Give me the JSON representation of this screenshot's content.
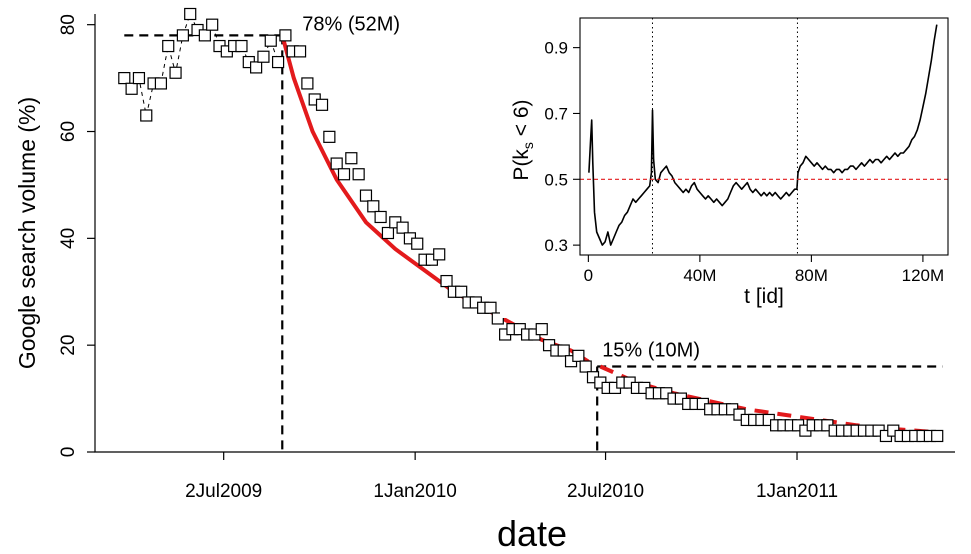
{
  "chart_data": [
    {
      "type": "scatter",
      "xlabel": "date",
      "ylabel": "Google search volume (%)",
      "x_ticks": [
        "2Jul2009",
        "1Jan2010",
        "2Jul2010",
        "1Jan2011"
      ],
      "y_ticks": [
        0,
        20,
        40,
        60,
        80
      ],
      "ylim": [
        0,
        82
      ],
      "xlim": [
        "2009-03-01",
        "2011-06-01"
      ],
      "grid": false,
      "colors": {
        "points": "#000000",
        "fit": "#e31a1c",
        "reference": "#000000"
      },
      "points": [
        [
          "2009-03-29",
          70
        ],
        [
          "2009-04-05",
          68
        ],
        [
          "2009-04-12",
          70
        ],
        [
          "2009-04-19",
          63
        ],
        [
          "2009-04-26",
          69
        ],
        [
          "2009-05-03",
          69
        ],
        [
          "2009-05-10",
          76
        ],
        [
          "2009-05-17",
          71
        ],
        [
          "2009-05-24",
          78
        ],
        [
          "2009-05-31",
          82
        ],
        [
          "2009-06-07",
          79
        ],
        [
          "2009-06-14",
          78
        ],
        [
          "2009-06-21",
          80
        ],
        [
          "2009-06-28",
          76
        ],
        [
          "2009-07-05",
          75
        ],
        [
          "2009-07-12",
          76
        ],
        [
          "2009-07-19",
          76
        ],
        [
          "2009-07-26",
          73
        ],
        [
          "2009-08-02",
          72
        ],
        [
          "2009-08-09",
          74
        ],
        [
          "2009-08-16",
          77
        ],
        [
          "2009-08-23",
          73
        ],
        [
          "2009-08-30",
          78
        ],
        [
          "2009-09-06",
          75
        ],
        [
          "2009-09-13",
          75
        ],
        [
          "2009-09-20",
          69
        ],
        [
          "2009-09-27",
          66
        ],
        [
          "2009-10-04",
          65
        ],
        [
          "2009-10-11",
          59
        ],
        [
          "2009-10-18",
          54
        ],
        [
          "2009-10-25",
          52
        ],
        [
          "2009-11-01",
          55
        ],
        [
          "2009-11-08",
          52
        ],
        [
          "2009-11-15",
          48
        ],
        [
          "2009-11-22",
          46
        ],
        [
          "2009-11-29",
          44
        ],
        [
          "2009-12-06",
          41
        ],
        [
          "2009-12-13",
          43
        ],
        [
          "2009-12-20",
          42
        ],
        [
          "2009-12-27",
          40
        ],
        [
          "2010-01-03",
          39
        ],
        [
          "2010-01-10",
          36
        ],
        [
          "2010-01-17",
          36
        ],
        [
          "2010-01-24",
          37
        ],
        [
          "2010-01-31",
          32
        ],
        [
          "2010-02-07",
          30
        ],
        [
          "2010-02-14",
          30
        ],
        [
          "2010-02-21",
          28
        ],
        [
          "2010-02-28",
          28
        ],
        [
          "2010-03-07",
          27
        ],
        [
          "2010-03-14",
          27
        ],
        [
          "2010-03-21",
          25
        ],
        [
          "2010-03-28",
          22
        ],
        [
          "2010-04-04",
          23
        ],
        [
          "2010-04-11",
          23
        ],
        [
          "2010-04-18",
          22
        ],
        [
          "2010-04-25",
          22
        ],
        [
          "2010-05-02",
          23
        ],
        [
          "2010-05-09",
          20
        ],
        [
          "2010-05-16",
          19
        ],
        [
          "2010-05-23",
          19
        ],
        [
          "2010-05-30",
          17
        ],
        [
          "2010-06-06",
          18
        ],
        [
          "2010-06-13",
          16
        ],
        [
          "2010-06-20",
          14
        ],
        [
          "2010-06-27",
          13
        ],
        [
          "2010-07-04",
          12
        ],
        [
          "2010-07-11",
          12
        ],
        [
          "2010-07-18",
          13
        ],
        [
          "2010-07-25",
          13
        ],
        [
          "2010-08-01",
          12
        ],
        [
          "2010-08-08",
          12
        ],
        [
          "2010-08-15",
          11
        ],
        [
          "2010-08-22",
          11
        ],
        [
          "2010-08-29",
          11
        ],
        [
          "2010-09-05",
          10
        ],
        [
          "2010-09-12",
          10
        ],
        [
          "2010-09-19",
          9
        ],
        [
          "2010-09-26",
          9
        ],
        [
          "2010-10-03",
          9
        ],
        [
          "2010-10-10",
          8
        ],
        [
          "2010-10-17",
          8
        ],
        [
          "2010-10-24",
          8
        ],
        [
          "2010-10-31",
          8
        ],
        [
          "2010-11-07",
          7
        ],
        [
          "2010-11-14",
          6
        ],
        [
          "2010-11-21",
          6
        ],
        [
          "2010-11-28",
          6
        ],
        [
          "2010-12-05",
          6
        ],
        [
          "2010-12-12",
          5
        ],
        [
          "2010-12-19",
          5
        ],
        [
          "2010-12-26",
          5
        ],
        [
          "2011-01-02",
          5
        ],
        [
          "2011-01-09",
          4
        ],
        [
          "2011-01-16",
          5
        ],
        [
          "2011-01-23",
          5
        ],
        [
          "2011-01-30",
          5
        ],
        [
          "2011-02-06",
          4
        ],
        [
          "2011-02-13",
          4
        ],
        [
          "2011-02-20",
          4
        ],
        [
          "2011-02-27",
          4
        ],
        [
          "2011-03-06",
          4
        ],
        [
          "2011-03-13",
          4
        ],
        [
          "2011-03-20",
          4
        ],
        [
          "2011-03-27",
          3
        ],
        [
          "2011-04-03",
          4
        ],
        [
          "2011-04-10",
          3
        ],
        [
          "2011-04-17",
          3
        ],
        [
          "2011-04-24",
          3
        ],
        [
          "2011-05-01",
          3
        ],
        [
          "2011-05-08",
          3
        ],
        [
          "2011-05-15",
          3
        ]
      ],
      "fit_solid": [
        [
          "2009-08-27",
          78
        ],
        [
          "2009-09-07",
          70
        ],
        [
          "2009-09-25",
          60
        ],
        [
          "2009-10-18",
          51
        ],
        [
          "2009-11-15",
          43
        ],
        [
          "2009-12-13",
          38
        ],
        [
          "2010-01-10",
          34
        ],
        [
          "2010-02-07",
          30
        ],
        [
          "2010-03-07",
          27
        ],
        [
          "2010-04-04",
          24
        ],
        [
          "2010-05-02",
          21
        ],
        [
          "2010-05-30",
          19
        ],
        [
          "2010-06-15",
          17
        ]
      ],
      "fit_dashed": [
        [
          "2010-06-27",
          16
        ],
        [
          "2010-08-01",
          13
        ],
        [
          "2010-09-05",
          11
        ],
        [
          "2010-10-10",
          9.5
        ],
        [
          "2010-11-14",
          8
        ],
        [
          "2010-12-19",
          7
        ],
        [
          "2011-01-23",
          6
        ],
        [
          "2011-02-27",
          5
        ],
        [
          "2011-04-03",
          4.3
        ],
        [
          "2011-05-08",
          3.8
        ]
      ],
      "reference_lines": [
        {
          "label": "78% (52M)",
          "date": "2009-08-27",
          "level": 78,
          "h_from": "2009-03-29",
          "h_to": "2009-08-27"
        },
        {
          "label": "15% (10M)",
          "date": "2010-06-24",
          "level": 16,
          "h_from": "2010-06-24",
          "h_to": "2011-05-20"
        }
      ]
    },
    {
      "type": "line",
      "xlabel": "t [id]",
      "ylabel": "P(k_s < 6)",
      "ylabel_main": "P(k",
      "ylabel_sub": "s",
      "ylabel_tail": " < 6)",
      "x_ticks": [
        "0",
        "40M",
        "80M",
        "120M"
      ],
      "x_tick_values": [
        0,
        40,
        80,
        120
      ],
      "y_ticks": [
        "0.3",
        "0.5",
        "0.7",
        "0.9"
      ],
      "y_tick_values": [
        0.3,
        0.5,
        0.7,
        0.9
      ],
      "xlim": [
        -3,
        129
      ],
      "ylim": [
        0.27,
        0.99
      ],
      "x_unit": "M",
      "colors": {
        "line": "#000000",
        "hline": "#e31a1c",
        "vlines": "#000000"
      },
      "hline": 0.5,
      "vlines": [
        23,
        75
      ],
      "series": [
        {
          "values": [
            [
              0.2,
              0.52
            ],
            [
              0.8,
              0.62
            ],
            [
              1.2,
              0.68
            ],
            [
              1.6,
              0.55
            ],
            [
              2.2,
              0.4
            ],
            [
              3,
              0.34
            ],
            [
              4,
              0.32
            ],
            [
              5,
              0.3
            ],
            [
              6,
              0.31
            ],
            [
              7,
              0.34
            ],
            [
              8,
              0.3
            ],
            [
              9,
              0.32
            ],
            [
              10,
              0.34
            ],
            [
              11,
              0.36
            ],
            [
              12,
              0.37
            ],
            [
              13,
              0.39
            ],
            [
              14,
              0.4
            ],
            [
              15,
              0.42
            ],
            [
              16,
              0.44
            ],
            [
              17,
              0.43
            ],
            [
              18,
              0.44
            ],
            [
              19,
              0.45
            ],
            [
              20,
              0.46
            ],
            [
              21,
              0.47
            ],
            [
              22,
              0.48
            ],
            [
              22.6,
              0.52
            ],
            [
              23,
              0.71
            ],
            [
              23.4,
              0.56
            ],
            [
              24,
              0.5
            ],
            [
              25,
              0.49
            ],
            [
              26,
              0.52
            ],
            [
              27,
              0.53
            ],
            [
              28,
              0.54
            ],
            [
              29,
              0.52
            ],
            [
              30,
              0.51
            ],
            [
              31,
              0.49
            ],
            [
              32,
              0.48
            ],
            [
              33,
              0.47
            ],
            [
              34,
              0.46
            ],
            [
              35,
              0.47
            ],
            [
              36,
              0.46
            ],
            [
              37,
              0.48
            ],
            [
              38,
              0.49
            ],
            [
              39,
              0.47
            ],
            [
              40,
              0.46
            ],
            [
              41,
              0.45
            ],
            [
              42,
              0.44
            ],
            [
              43,
              0.45
            ],
            [
              44,
              0.44
            ],
            [
              45,
              0.43
            ],
            [
              46,
              0.44
            ],
            [
              47,
              0.43
            ],
            [
              48,
              0.42
            ],
            [
              49,
              0.43
            ],
            [
              50,
              0.44
            ],
            [
              51,
              0.46
            ],
            [
              52,
              0.48
            ],
            [
              53,
              0.49
            ],
            [
              54,
              0.48
            ],
            [
              55,
              0.47
            ],
            [
              56,
              0.48
            ],
            [
              57,
              0.49
            ],
            [
              58,
              0.47
            ],
            [
              59,
              0.46
            ],
            [
              60,
              0.47
            ],
            [
              61,
              0.46
            ],
            [
              62,
              0.45
            ],
            [
              63,
              0.46
            ],
            [
              64,
              0.45
            ],
            [
              65,
              0.46
            ],
            [
              66,
              0.45
            ],
            [
              67,
              0.46
            ],
            [
              68,
              0.45
            ],
            [
              69,
              0.44
            ],
            [
              70,
              0.45
            ],
            [
              71,
              0.46
            ],
            [
              72,
              0.45
            ],
            [
              73,
              0.46
            ],
            [
              74,
              0.47
            ],
            [
              74.8,
              0.47
            ],
            [
              75.2,
              0.52
            ],
            [
              76,
              0.54
            ],
            [
              77,
              0.55
            ],
            [
              78,
              0.57
            ],
            [
              79,
              0.56
            ],
            [
              80,
              0.55
            ],
            [
              81,
              0.54
            ],
            [
              82,
              0.55
            ],
            [
              83,
              0.54
            ],
            [
              84,
              0.53
            ],
            [
              85,
              0.54
            ],
            [
              86,
              0.53
            ],
            [
              87,
              0.53
            ],
            [
              88,
              0.52
            ],
            [
              89,
              0.53
            ],
            [
              90,
              0.53
            ],
            [
              91,
              0.52
            ],
            [
              92,
              0.53
            ],
            [
              93,
              0.53
            ],
            [
              94,
              0.54
            ],
            [
              95,
              0.54
            ],
            [
              96,
              0.53
            ],
            [
              97,
              0.54
            ],
            [
              98,
              0.55
            ],
            [
              99,
              0.54
            ],
            [
              100,
              0.55
            ],
            [
              101,
              0.56
            ],
            [
              102,
              0.55
            ],
            [
              103,
              0.56
            ],
            [
              104,
              0.56
            ],
            [
              105,
              0.55
            ],
            [
              106,
              0.56
            ],
            [
              107,
              0.57
            ],
            [
              108,
              0.56
            ],
            [
              109,
              0.57
            ],
            [
              110,
              0.58
            ],
            [
              111,
              0.57
            ],
            [
              112,
              0.58
            ],
            [
              113,
              0.58
            ],
            [
              114,
              0.59
            ],
            [
              115,
              0.6
            ],
            [
              116,
              0.62
            ],
            [
              117,
              0.63
            ],
            [
              118,
              0.65
            ],
            [
              119,
              0.68
            ],
            [
              120,
              0.72
            ],
            [
              121,
              0.76
            ],
            [
              122,
              0.81
            ],
            [
              123,
              0.86
            ],
            [
              124,
              0.92
            ],
            [
              125,
              0.97
            ]
          ]
        }
      ]
    }
  ]
}
